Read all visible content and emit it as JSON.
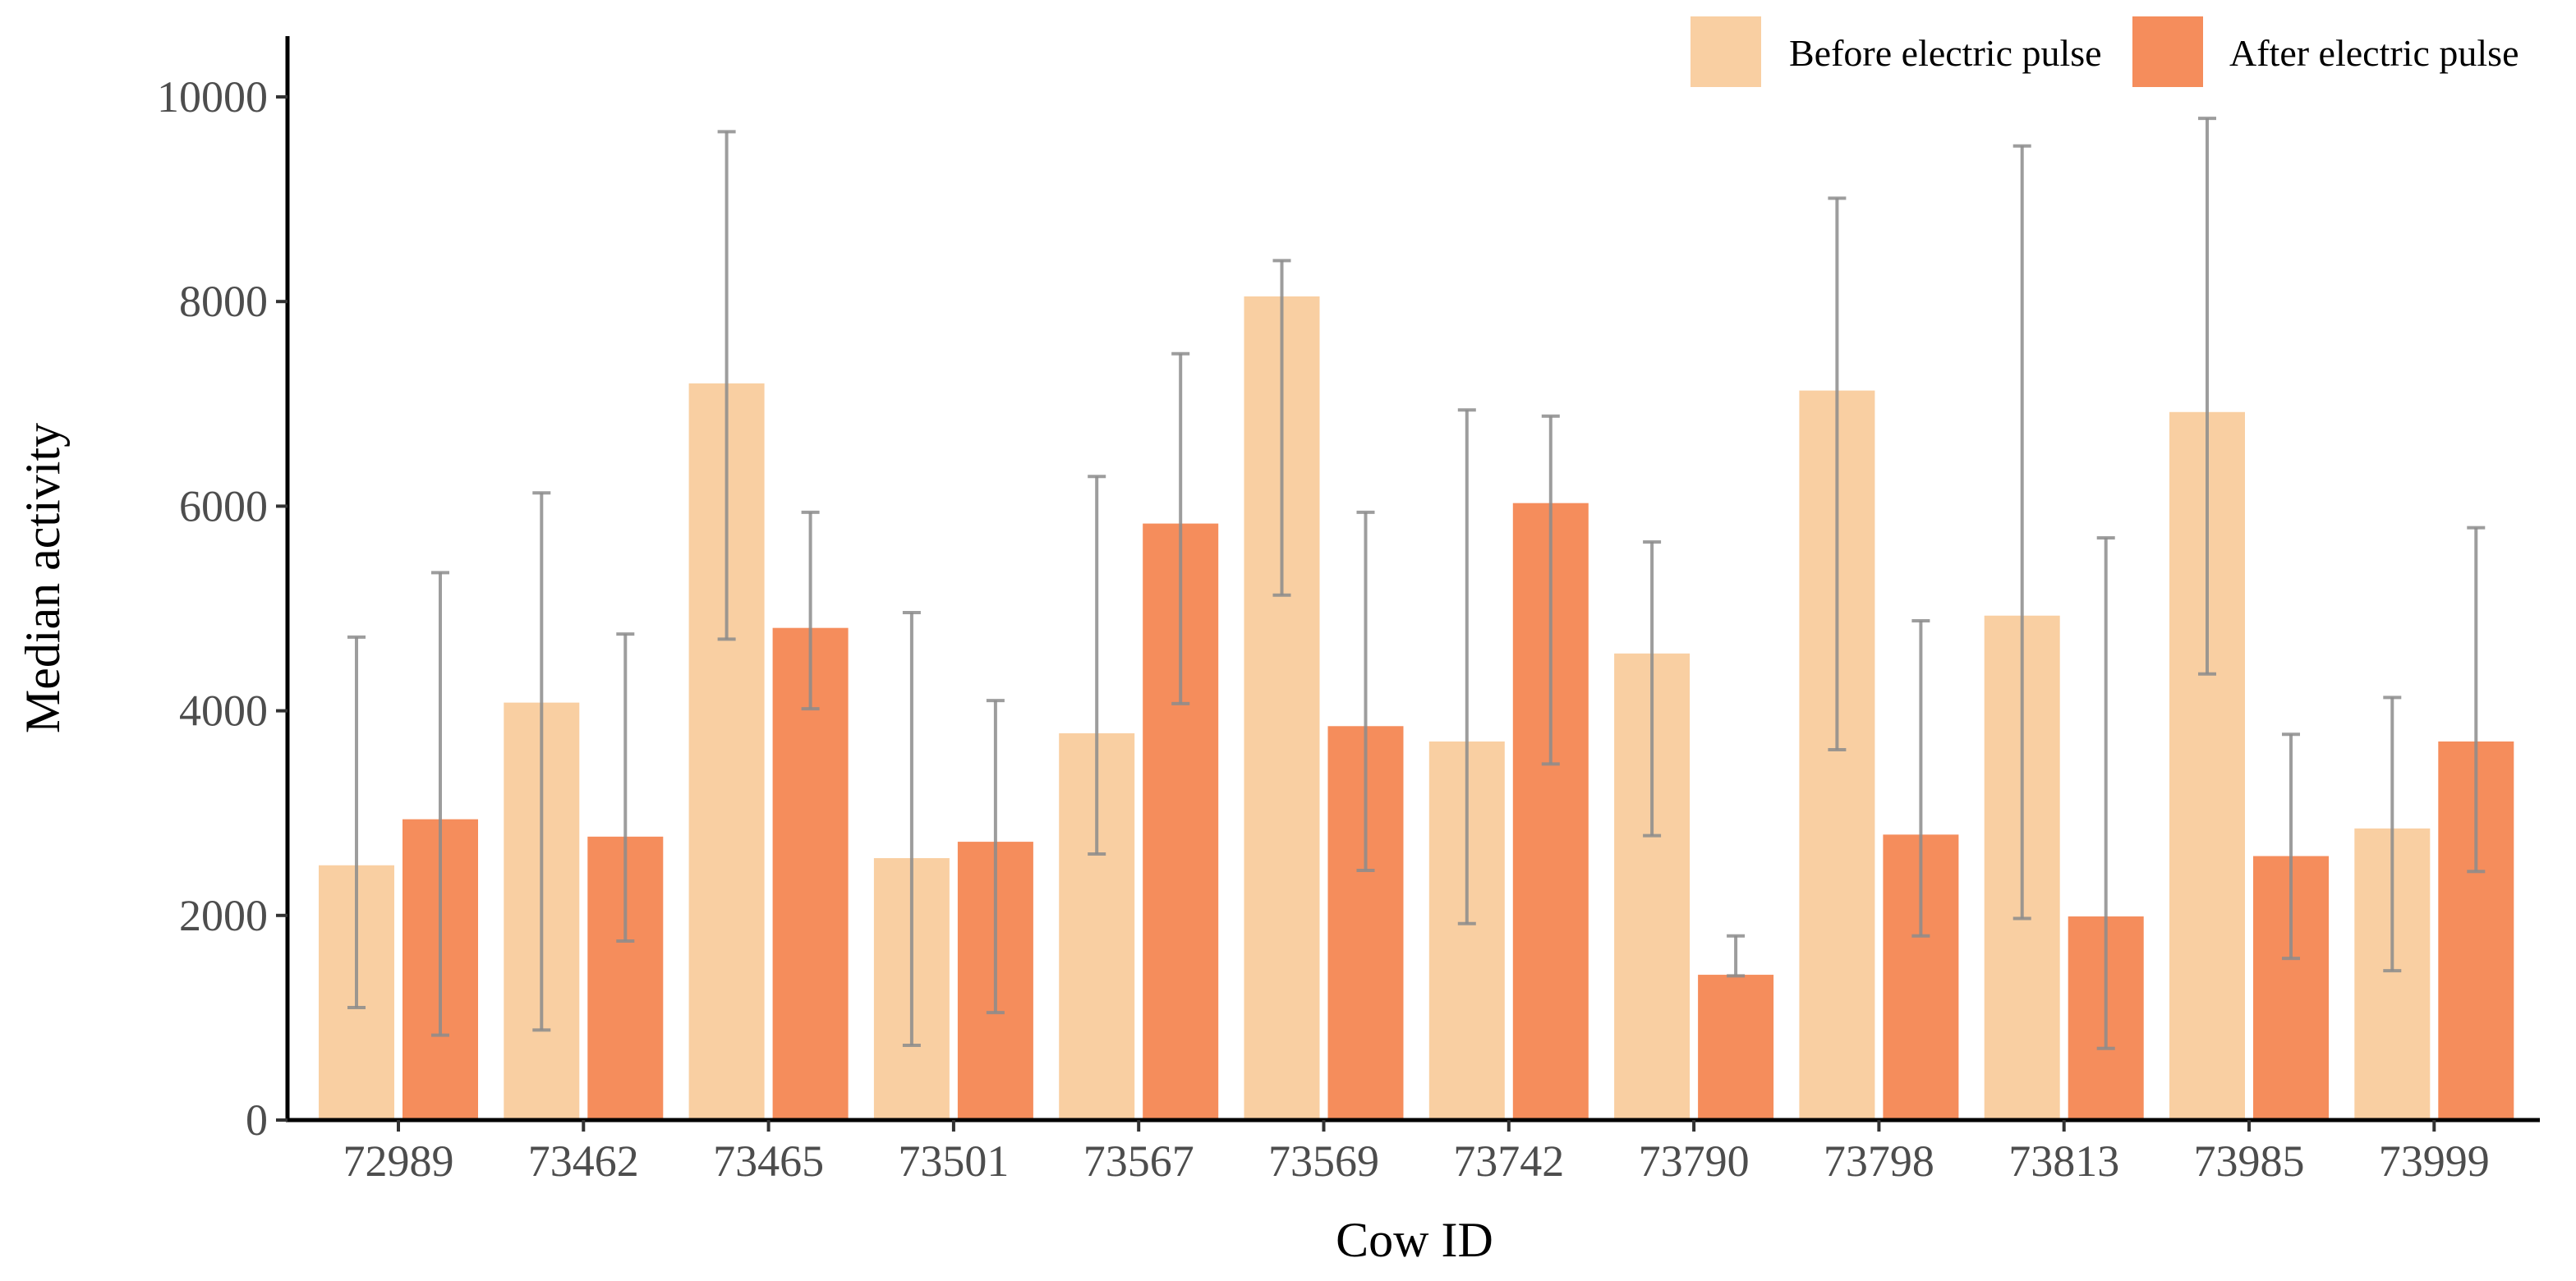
{
  "chart_data": {
    "type": "bar",
    "title": "",
    "xlabel": "Cow ID",
    "ylabel": "Median activity",
    "ylim": [
      0,
      10500
    ],
    "yticks": [
      0,
      2000,
      4000,
      6000,
      8000,
      10000
    ],
    "ytick_labels": [
      "0",
      "2000",
      "4000",
      "6000",
      "8000",
      "10000"
    ],
    "grid": false,
    "legend_position": "top-right",
    "categories": [
      "72989",
      "73462",
      "73465",
      "73501",
      "73567",
      "73569",
      "73742",
      "73790",
      "73798",
      "73813",
      "73985",
      "73999"
    ],
    "series": [
      {
        "name": "Before electric pulse",
        "color": "#F9CFA2",
        "values": [
          2490,
          4080,
          7200,
          2560,
          3780,
          8050,
          3700,
          4560,
          7130,
          4930,
          6920,
          2850
        ],
        "error_low": [
          1100,
          880,
          4700,
          730,
          2600,
          5130,
          1920,
          2780,
          3620,
          1970,
          4360,
          1460
        ],
        "error_high": [
          4720,
          6130,
          9660,
          4960,
          6290,
          8400,
          6940,
          5650,
          9010,
          9520,
          9790,
          4130
        ]
      },
      {
        "name": "After electric pulse",
        "color": "#F58D5C",
        "values": [
          2940,
          2770,
          4810,
          2720,
          5830,
          3850,
          6030,
          1420,
          2790,
          1990,
          2580,
          3700
        ],
        "error_low": [
          830,
          1750,
          4020,
          1050,
          4070,
          2440,
          3480,
          1410,
          1800,
          700,
          1580,
          2430
        ],
        "error_high": [
          5350,
          4750,
          5940,
          4100,
          7490,
          5940,
          6880,
          1800,
          4880,
          5690,
          3770,
          5790
        ]
      }
    ]
  }
}
